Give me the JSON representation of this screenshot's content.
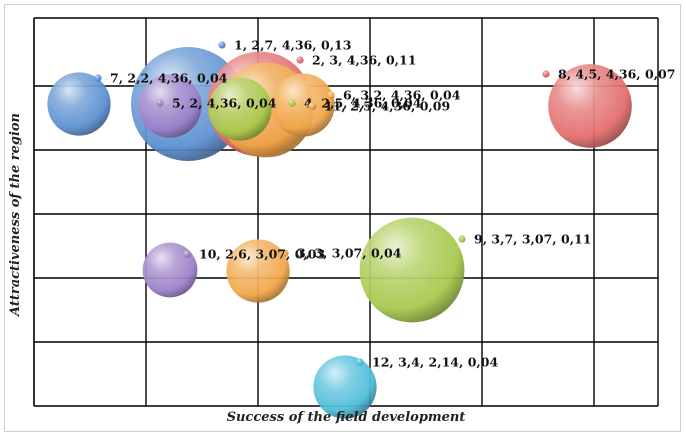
{
  "chart_data": {
    "type": "bubble",
    "xlabel": "Success of the field development",
    "ylabel": "Attractiveness of the region",
    "x_grid_categories": 6,
    "y_grid_categories": 6,
    "grid": true,
    "legend": "none",
    "points": [
      {
        "id": 1,
        "x": 2,
        "y": 7,
        "x_value": 4.36,
        "size": 0.13,
        "label": "1, 2,7, 4,36, 0,13",
        "color": "#5a8fd0"
      },
      {
        "id": 2,
        "x": 3,
        "y": 0,
        "x_value": 4.36,
        "size": 0.11,
        "label": "2, 3, 4,36, 0,11",
        "color": "#e26b6b"
      },
      {
        "id": 3,
        "x": 3,
        "y": 0,
        "x_value": 3.07,
        "size": 0.04,
        "label": "3, 3, 3,07, 0,04",
        "color": "#f0a547"
      },
      {
        "id": 4,
        "x": 2,
        "y": 5,
        "x_value": 4.36,
        "size": 0.04,
        "label": "4, 2,5, 4,36, 0,04",
        "color": "#a6c84a"
      },
      {
        "id": 5,
        "x": 2,
        "y": 0,
        "x_value": 4.36,
        "size": 0.04,
        "label": "5, 2, 4,36, 0,04",
        "color": "#9b7fc7"
      },
      {
        "id": 6,
        "x": 3,
        "y": 2,
        "x_value": 4.36,
        "size": 0.04,
        "label": "6, 3,2, 4,36, 0,04",
        "color": "#f0a547"
      },
      {
        "id": 7,
        "x": 2,
        "y": 2,
        "x_value": 4.36,
        "size": 0.04,
        "label": "7, 2,2, 4,36, 0,04",
        "color": "#5a8fd0"
      },
      {
        "id": 8,
        "x": 4,
        "y": 5,
        "x_value": 4.36,
        "size": 0.07,
        "label": "8, 4,5, 4,36, 0,07",
        "color": "#e26b6b"
      },
      {
        "id": 9,
        "x": 3,
        "y": 7,
        "x_value": 3.07,
        "size": 0.11,
        "label": "9, 3,7, 3,07, 0,11",
        "color": "#a6c84a"
      },
      {
        "id": 10,
        "x": 2,
        "y": 6,
        "x_value": 3.07,
        "size": 0.03,
        "label": "10, 2,6, 3,07, 0,03",
        "color": "#9b7fc7"
      },
      {
        "id": 11,
        "x": 2,
        "y": 5,
        "x_value": 4.36,
        "size": 0.09,
        "label": "11, 2,5, 4,36, 0,09",
        "color": "#f0a547"
      },
      {
        "id": 12,
        "x": 3,
        "y": 4,
        "x_value": 2.14,
        "size": 0.04,
        "label": "12, 3,4, 2,14, 0,04",
        "color": "#4bbcd8"
      }
    ]
  }
}
